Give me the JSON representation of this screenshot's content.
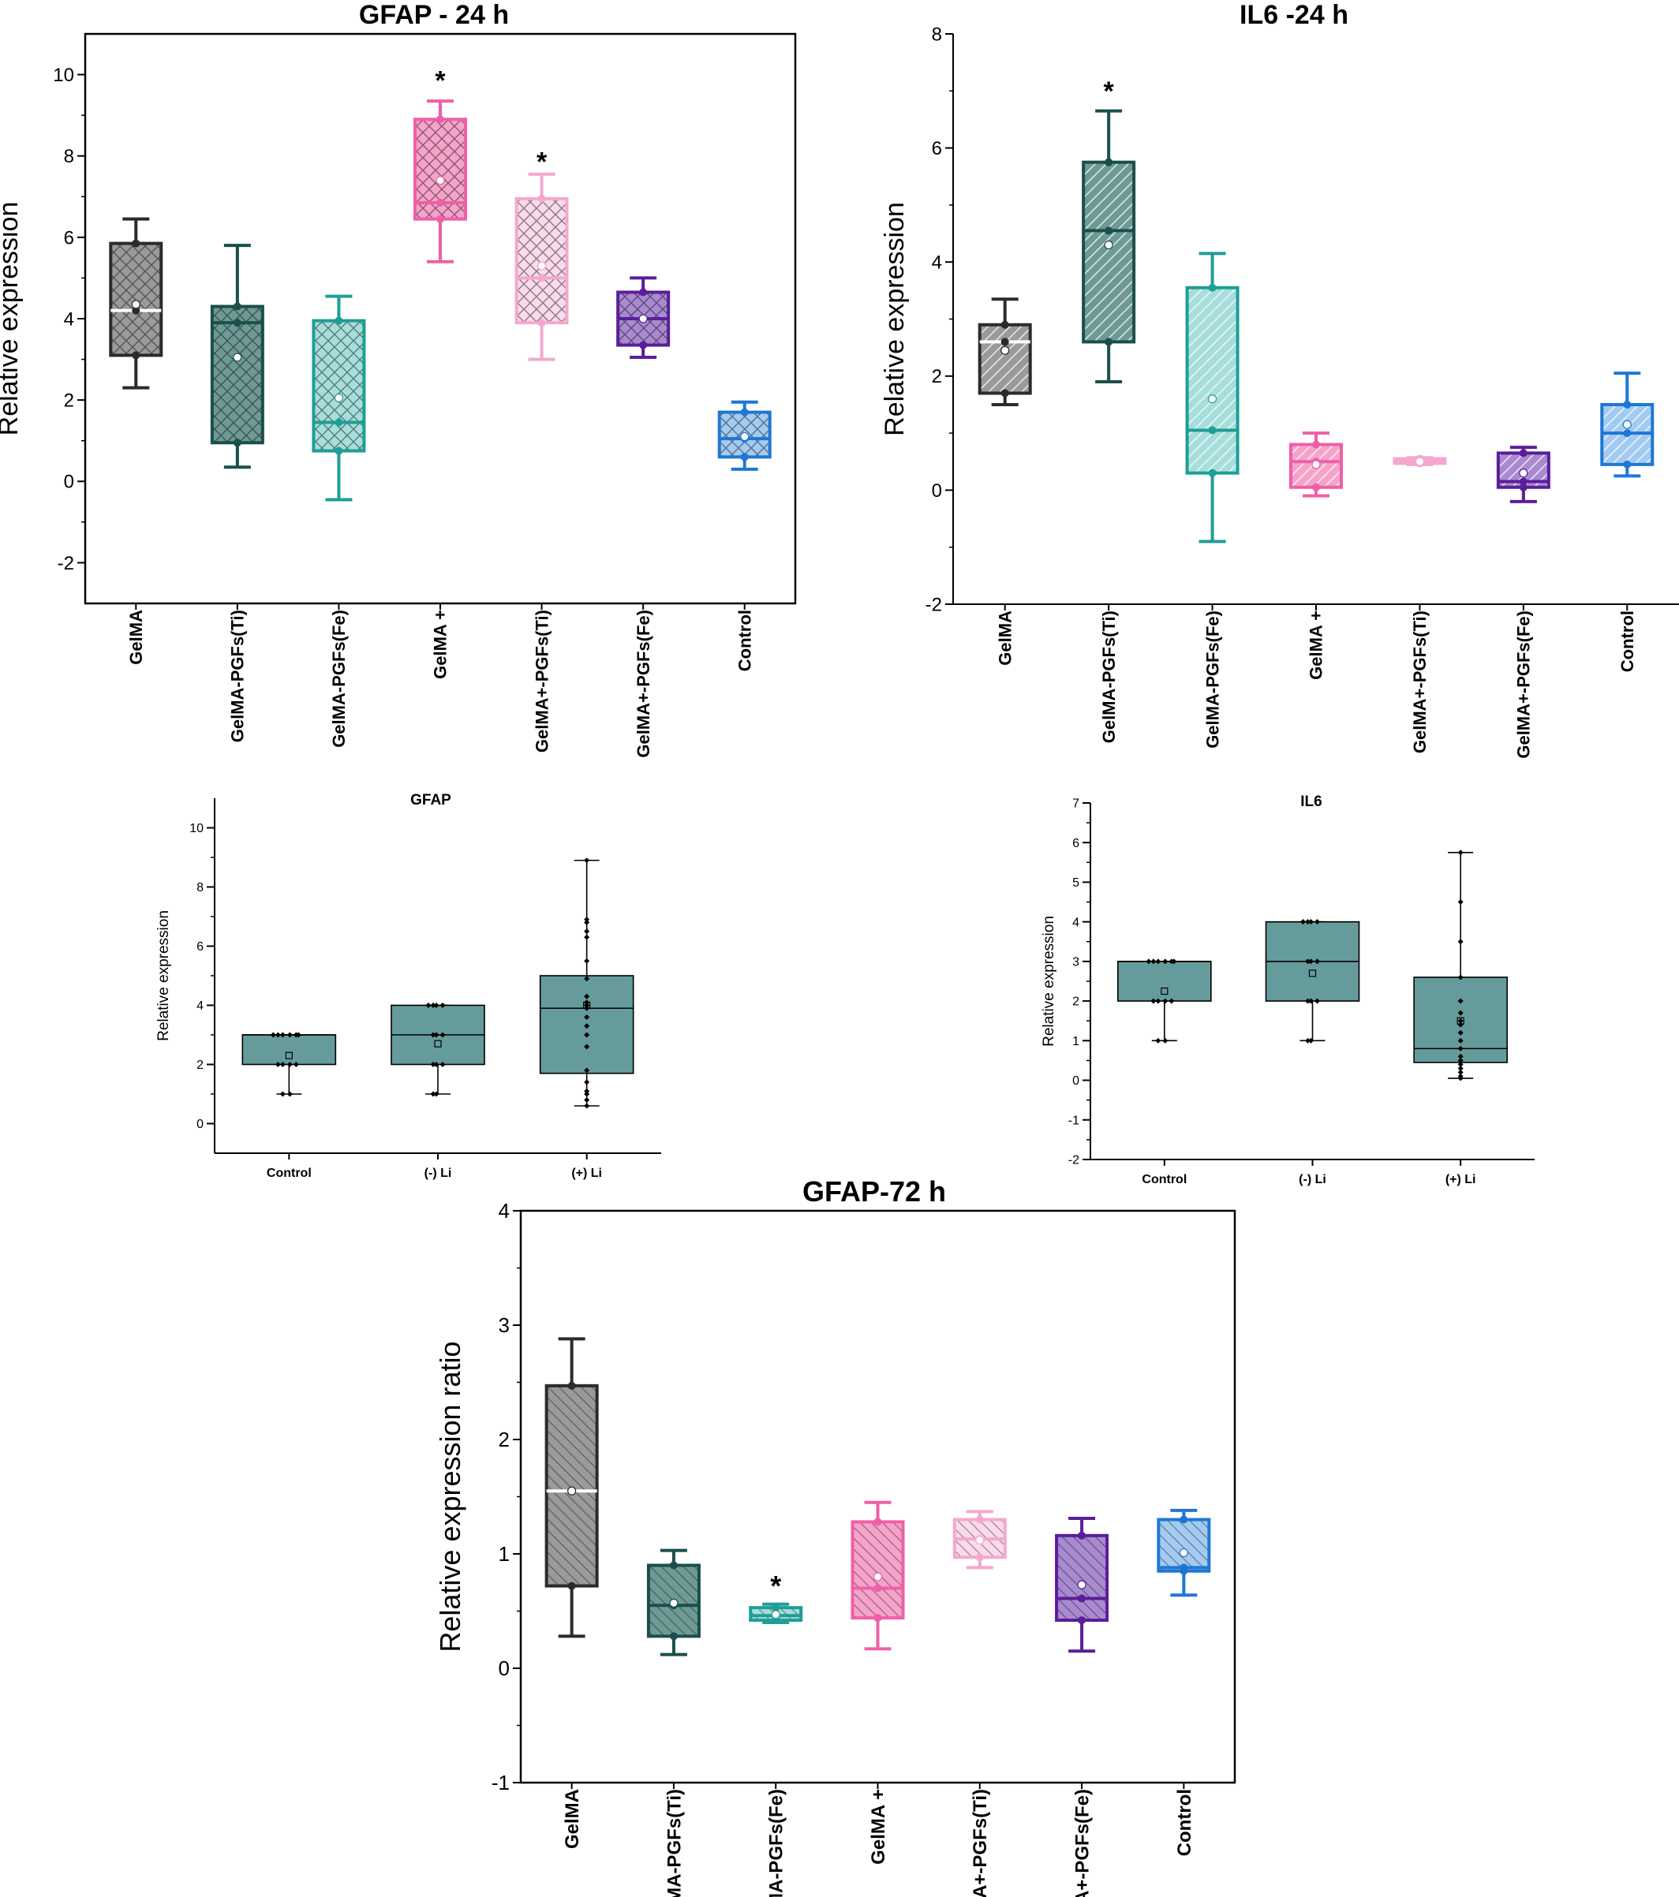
{
  "chart_data": [
    {
      "id": "gfap24",
      "type": "box",
      "title": "GFAP - 24 h",
      "ylabel": "Relative expression",
      "xlabel": "",
      "ylim": [
        -3,
        11
      ],
      "yticks": [
        -2,
        0,
        2,
        4,
        6,
        8,
        10
      ],
      "categories": [
        "GelMA",
        "GelMA-PGFs(Ti)",
        "GelMA-PGFs(Fe)",
        "GelMA +",
        "GelMA+-PGFs(Ti)",
        "GelMA+-PGFs(Fe)",
        "Control"
      ],
      "colors": [
        "#2b2b2b",
        "#1a4f4c",
        "#1e9e96",
        "#ef5fa8",
        "#f4a8cf",
        "#5a1e9a",
        "#1f77d4"
      ],
      "fills": [
        "#9a9a9a",
        "#6e9a96",
        "#a6dedb",
        "#f6a3cb",
        "#fbdbeb",
        "#a98ad0",
        "#a3cbf2"
      ],
      "series": [
        {
          "whisker_low": 2.3,
          "q1": 3.1,
          "median": 4.2,
          "q3": 5.85,
          "whisker_high": 6.45,
          "mean": 4.35,
          "points": [
            3.1,
            4.2,
            5.85
          ]
        },
        {
          "whisker_low": 0.35,
          "q1": 0.95,
          "median": 3.9,
          "q3": 4.3,
          "whisker_high": 5.8,
          "mean": 3.05,
          "points": [
            0.95,
            3.9,
            4.3
          ]
        },
        {
          "whisker_low": -0.45,
          "q1": 0.75,
          "median": 1.45,
          "q3": 3.95,
          "whisker_high": 4.55,
          "mean": 2.05,
          "points": [
            0.75,
            1.45,
            3.95
          ]
        },
        {
          "whisker_low": 5.4,
          "q1": 6.45,
          "median": 6.85,
          "q3": 8.9,
          "whisker_high": 9.35,
          "mean": 7.4,
          "points": [
            6.45,
            6.85,
            8.9
          ]
        },
        {
          "whisker_low": 3.0,
          "q1": 3.9,
          "median": 5.0,
          "q3": 6.95,
          "whisker_high": 7.55,
          "mean": 5.3,
          "points": [
            3.9,
            5.0,
            6.95
          ]
        },
        {
          "whisker_low": 3.05,
          "q1": 3.35,
          "median": 4.0,
          "q3": 4.65,
          "whisker_high": 5.0,
          "mean": 4.0,
          "points": [
            3.35,
            4.0,
            4.65
          ]
        },
        {
          "whisker_low": 0.3,
          "q1": 0.6,
          "median": 1.05,
          "q3": 1.7,
          "whisker_high": 1.95,
          "mean": 1.1,
          "points": [
            0.6,
            1.05,
            1.7
          ]
        }
      ],
      "annotations": [
        {
          "index": 3,
          "value": 10.0,
          "text": "*"
        },
        {
          "index": 4,
          "value": 8.0,
          "text": "*"
        }
      ]
    },
    {
      "id": "il624",
      "type": "box",
      "title": "IL6 -24 h",
      "ylabel": "Relative expression",
      "xlabel": "",
      "ylim": [
        -2,
        8
      ],
      "yticks": [
        -2,
        0,
        2,
        4,
        6,
        8
      ],
      "categories": [
        "GelMA",
        "GelMA-PGFs(Ti)",
        "GelMA-PGFs(Fe)",
        "GelMA +",
        "GelMA+-PGFs(Ti)",
        "GelMA+-PGFs(Fe)",
        "Control"
      ],
      "colors": [
        "#2b2b2b",
        "#1a4f4c",
        "#1e9e96",
        "#ef5fa8",
        "#f4a8cf",
        "#5a1e9a",
        "#1f77d4"
      ],
      "fills": [
        "#9a9a9a",
        "#6e9a96",
        "#a6dedb",
        "#f6a3cb",
        "#fbdbeb",
        "#a98ad0",
        "#a3cbf2"
      ],
      "series": [
        {
          "whisker_low": 1.5,
          "q1": 1.7,
          "median": 2.6,
          "q3": 2.9,
          "whisker_high": 3.35,
          "mean": 2.45,
          "points": [
            1.7,
            2.6,
            2.9
          ]
        },
        {
          "whisker_low": 1.9,
          "q1": 2.6,
          "median": 4.55,
          "q3": 5.75,
          "whisker_high": 6.65,
          "mean": 4.3,
          "points": [
            2.6,
            4.55,
            5.75
          ]
        },
        {
          "whisker_low": -0.9,
          "q1": 0.3,
          "median": 1.05,
          "q3": 3.55,
          "whisker_high": 4.15,
          "mean": 1.6,
          "points": [
            0.3,
            1.05,
            3.55
          ]
        },
        {
          "whisker_low": -0.1,
          "q1": 0.05,
          "median": 0.5,
          "q3": 0.8,
          "whisker_high": 1.0,
          "mean": 0.45,
          "points": [
            0.05,
            0.5,
            0.8
          ]
        },
        {
          "whisker_low": 0.45,
          "q1": 0.47,
          "median": 0.5,
          "q3": 0.55,
          "whisker_high": 0.57,
          "mean": 0.5,
          "points": [
            0.47,
            0.5,
            0.55
          ]
        },
        {
          "whisker_low": -0.2,
          "q1": 0.05,
          "median": 0.15,
          "q3": 0.65,
          "whisker_high": 0.75,
          "mean": 0.3,
          "points": [
            0.05,
            0.15,
            0.65
          ]
        },
        {
          "whisker_low": 0.25,
          "q1": 0.45,
          "median": 1.0,
          "q3": 1.5,
          "whisker_high": 2.05,
          "mean": 1.15,
          "points": [
            0.45,
            1.0,
            1.5
          ]
        }
      ],
      "annotations": [
        {
          "index": 1,
          "value": 7.1,
          "text": "*"
        }
      ]
    },
    {
      "id": "gfapLi",
      "type": "box",
      "title": "GFAP",
      "ylabel": "Relative expression",
      "xlabel": "",
      "ylim": [
        -1,
        11
      ],
      "yticks": [
        0,
        2,
        4,
        6,
        8,
        10
      ],
      "categories": [
        "Control",
        "(-) Li",
        "(+) Li"
      ],
      "colors": [
        "#000000",
        "#000000",
        "#000000"
      ],
      "fills": [
        "#669b9b",
        "#669b9b",
        "#669b9b"
      ],
      "series": [
        {
          "whisker_low": 1.0,
          "q1": 2.0,
          "median": 3.0,
          "q3": 3.0,
          "whisker_high": 3.0,
          "mean": 2.3,
          "points": [
            1.0,
            1.0,
            2.0,
            2.0,
            2.0,
            2.0,
            3.0,
            3.0,
            3.0,
            3.0,
            3.0,
            3.0
          ]
        },
        {
          "whisker_low": 1.0,
          "q1": 2.0,
          "median": 3.0,
          "q3": 4.0,
          "whisker_high": 4.0,
          "mean": 2.7,
          "points": [
            1.0,
            1.0,
            2.0,
            2.0,
            2.0,
            3.0,
            3.0,
            3.0,
            4.0,
            4.0,
            4.0,
            4.0
          ]
        },
        {
          "whisker_low": 0.6,
          "q1": 1.7,
          "median": 3.9,
          "q3": 5.0,
          "whisker_high": 8.9,
          "mean": 4.0,
          "points": [
            0.6,
            0.8,
            1.0,
            1.1,
            1.4,
            1.8,
            2.6,
            3.0,
            3.3,
            3.6,
            3.9,
            4.0,
            4.1,
            4.3,
            4.9,
            5.5,
            6.3,
            6.5,
            6.8,
            6.9,
            8.9
          ]
        }
      ],
      "annotations": []
    },
    {
      "id": "il6Li",
      "type": "box",
      "title": "IL6",
      "ylabel": "Relative expression",
      "xlabel": "",
      "ylim": [
        -2,
        7
      ],
      "yticks": [
        -2,
        -1,
        0,
        1,
        2,
        3,
        4,
        5,
        6,
        7
      ],
      "categories": [
        "Control",
        "(-) Li",
        "(+) Li"
      ],
      "colors": [
        "#000000",
        "#000000",
        "#000000"
      ],
      "fills": [
        "#669b9b",
        "#669b9b",
        "#669b9b"
      ],
      "series": [
        {
          "whisker_low": 1.0,
          "q1": 2.0,
          "median": 3.0,
          "q3": 3.0,
          "whisker_high": 3.0,
          "mean": 2.25,
          "points": [
            1.0,
            1.0,
            2.0,
            2.0,
            2.0,
            2.0,
            3.0,
            3.0,
            3.0,
            3.0,
            3.0,
            3.0
          ]
        },
        {
          "whisker_low": 1.0,
          "q1": 2.0,
          "median": 3.0,
          "q3": 4.0,
          "whisker_high": 4.0,
          "mean": 2.7,
          "points": [
            1.0,
            1.0,
            2.0,
            2.0,
            2.0,
            3.0,
            3.0,
            3.0,
            4.0,
            4.0,
            4.0,
            4.0
          ]
        },
        {
          "whisker_low": 0.05,
          "q1": 0.45,
          "median": 0.8,
          "q3": 2.6,
          "whisker_high": 5.75,
          "mean": 1.5,
          "points": [
            0.05,
            0.1,
            0.2,
            0.3,
            0.4,
            0.5,
            0.6,
            0.8,
            1.0,
            1.2,
            1.4,
            1.5,
            1.7,
            2.0,
            2.6,
            3.5,
            4.5,
            5.75
          ]
        }
      ],
      "annotations": []
    },
    {
      "id": "gfap72",
      "type": "box",
      "title": "GFAP-72 h",
      "ylabel": "Relative expression ratio",
      "xlabel": "",
      "ylim": [
        -1,
        4
      ],
      "yticks": [
        -1,
        0,
        1,
        2,
        3,
        4
      ],
      "categories": [
        "GelMA",
        "GelMA-PGFs(Ti)",
        "GelMA-PGFs(Fe)",
        "GelMA +",
        "GelMA+-PGFs(Ti)",
        "GelMA+-PGFs(Fe)",
        "Control"
      ],
      "colors": [
        "#2b2b2b",
        "#1a4f4c",
        "#1e9e96",
        "#ef5fa8",
        "#f4a8cf",
        "#5a1e9a",
        "#1f77d4"
      ],
      "fills": [
        "#9a9a9a",
        "#6e9a96",
        "#a6dedb",
        "#f6a3cb",
        "#fbdbeb",
        "#a98ad0",
        "#a3cbf2"
      ],
      "series": [
        {
          "whisker_low": 0.28,
          "q1": 0.72,
          "median": 1.55,
          "q3": 2.47,
          "whisker_high": 2.88,
          "mean": 1.55,
          "points": [
            0.72,
            1.55,
            2.47
          ]
        },
        {
          "whisker_low": 0.12,
          "q1": 0.28,
          "median": 0.55,
          "q3": 0.9,
          "whisker_high": 1.03,
          "mean": 0.57,
          "points": [
            0.28,
            0.55,
            0.9
          ]
        },
        {
          "whisker_low": 0.4,
          "q1": 0.42,
          "median": 0.46,
          "q3": 0.53,
          "whisker_high": 0.56,
          "mean": 0.47,
          "points": [
            0.42,
            0.46,
            0.53
          ]
        },
        {
          "whisker_low": 0.17,
          "q1": 0.44,
          "median": 0.7,
          "q3": 1.28,
          "whisker_high": 1.45,
          "mean": 0.8,
          "points": [
            0.44,
            0.7,
            1.28
          ]
        },
        {
          "whisker_low": 0.88,
          "q1": 0.97,
          "median": 1.13,
          "q3": 1.3,
          "whisker_high": 1.37,
          "mean": 1.12,
          "points": [
            0.97,
            1.13,
            1.3
          ]
        },
        {
          "whisker_low": 0.15,
          "q1": 0.42,
          "median": 0.61,
          "q3": 1.16,
          "whisker_high": 1.31,
          "mean": 0.73,
          "points": [
            0.42,
            0.61,
            1.16
          ]
        },
        {
          "whisker_low": 0.64,
          "q1": 0.85,
          "median": 0.88,
          "q3": 1.3,
          "whisker_high": 1.38,
          "mean": 1.01,
          "points": [
            0.85,
            0.88,
            1.3
          ]
        }
      ],
      "annotations": [
        {
          "index": 2,
          "value": 0.77,
          "text": "*"
        }
      ]
    }
  ]
}
